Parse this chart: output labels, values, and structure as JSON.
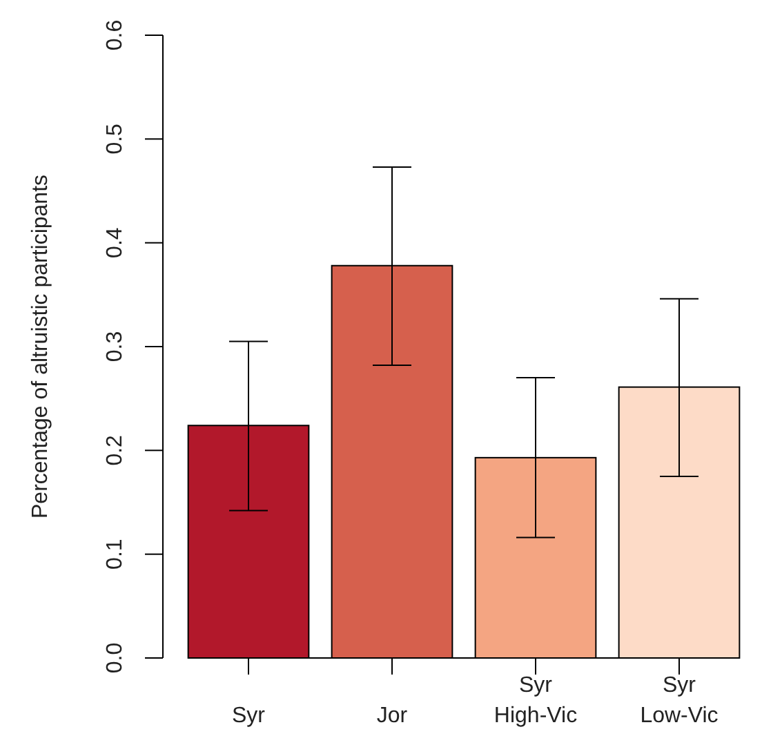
{
  "chart_data": {
    "type": "bar",
    "ylabel": "Percentage of altruistic participants",
    "categories": [
      "Syr",
      "Jor",
      "Syr\nHigh-Vic",
      "Syr\nLow-Vic"
    ],
    "values": [
      0.224,
      0.378,
      0.193,
      0.261
    ],
    "colors": [
      "#b2182b",
      "#d6604d",
      "#f4a582",
      "#fddbc7"
    ],
    "errors": [
      [
        0.142,
        0.305
      ],
      [
        0.282,
        0.473
      ],
      [
        0.116,
        0.27
      ],
      [
        0.175,
        0.346
      ]
    ],
    "ylim": [
      0,
      0.6
    ],
    "yticks": [
      {
        "value": 0,
        "label": "0.0"
      },
      0.1,
      0.2,
      0.3,
      0.4,
      0.5,
      0.6
    ],
    "grid": false
  }
}
